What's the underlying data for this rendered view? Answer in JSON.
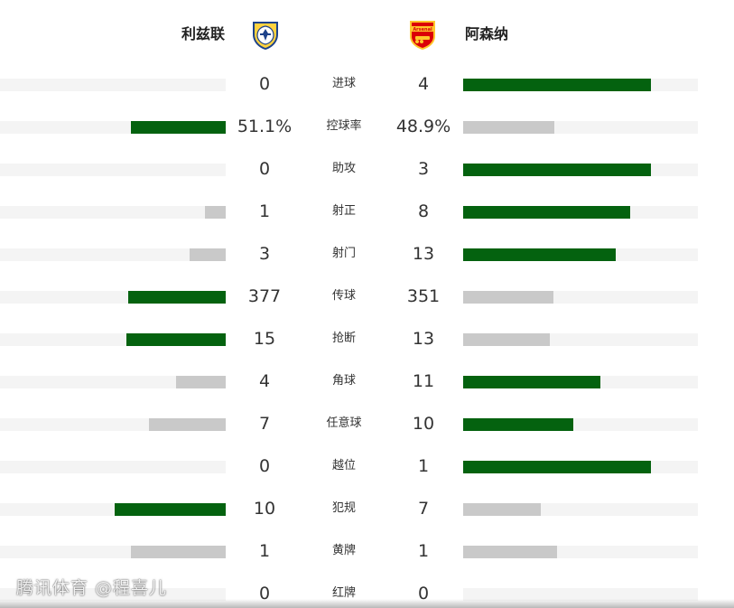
{
  "teams": {
    "home": {
      "name": "利兹联",
      "badge_icon": "leeds-badge-icon",
      "badge_colors": [
        "#ffd23f",
        "#1d428a",
        "#ffffff"
      ]
    },
    "away": {
      "name": "阿森纳",
      "badge_icon": "arsenal-badge-icon",
      "badge_colors": [
        "#db0007",
        "#ffc72c",
        "#ffffff"
      ],
      "badge_text": "Arsenal"
    }
  },
  "colors": {
    "winner_bar": "#04620f",
    "loser_bar": "#c9c9c9",
    "track": "#f4f4f4"
  },
  "stats": [
    {
      "label": "进球",
      "home": "0",
      "away": "4",
      "home_share": 0.0,
      "away_share": 0.8,
      "leader": "away"
    },
    {
      "label": "控球率",
      "home": "51.1%",
      "away": "48.9%",
      "home_share": 0.42,
      "away_share": 0.39,
      "leader": "home"
    },
    {
      "label": "助攻",
      "home": "0",
      "away": "3",
      "home_share": 0.0,
      "away_share": 0.8,
      "leader": "away"
    },
    {
      "label": "射正",
      "home": "1",
      "away": "8",
      "home_share": 0.09,
      "away_share": 0.71,
      "leader": "away"
    },
    {
      "label": "射门",
      "home": "3",
      "away": "13",
      "home_share": 0.16,
      "away_share": 0.65,
      "leader": "away"
    },
    {
      "label": "传球",
      "home": "377",
      "away": "351",
      "home_share": 0.43,
      "away_share": 0.385,
      "leader": "home"
    },
    {
      "label": "抢断",
      "home": "15",
      "away": "13",
      "home_share": 0.44,
      "away_share": 0.37,
      "leader": "home"
    },
    {
      "label": "角球",
      "home": "4",
      "away": "11",
      "home_share": 0.22,
      "away_share": 0.585,
      "leader": "away"
    },
    {
      "label": "任意球",
      "home": "7",
      "away": "10",
      "home_share": 0.34,
      "away_share": 0.47,
      "leader": "away"
    },
    {
      "label": "越位",
      "home": "0",
      "away": "1",
      "home_share": 0.0,
      "away_share": 0.8,
      "leader": "away"
    },
    {
      "label": "犯规",
      "home": "10",
      "away": "7",
      "home_share": 0.49,
      "away_share": 0.33,
      "leader": "home"
    },
    {
      "label": "黄牌",
      "home": "1",
      "away": "1",
      "home_share": 0.42,
      "away_share": 0.4,
      "leader": "none"
    },
    {
      "label": "红牌",
      "home": "0",
      "away": "0",
      "home_share": 0.0,
      "away_share": 0.0,
      "leader": "none"
    }
  ],
  "watermark": "腾讯体育 @程喜儿"
}
